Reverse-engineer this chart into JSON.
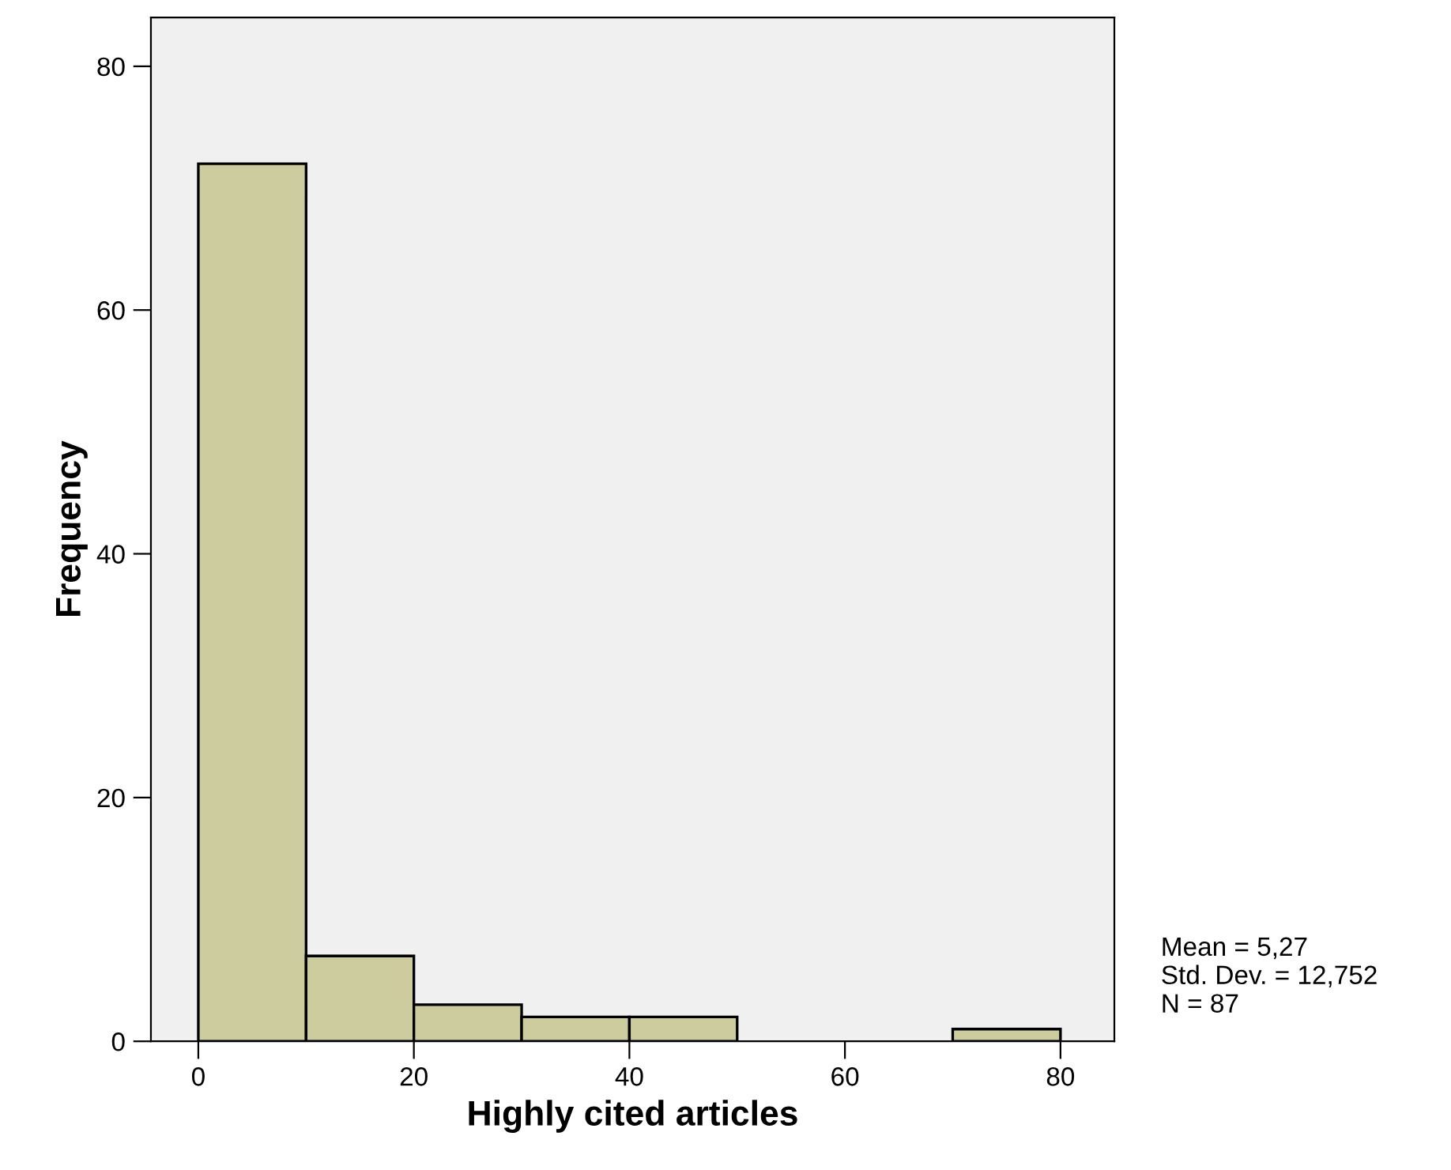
{
  "chart_data": {
    "type": "histogram",
    "xlabel": "Highly cited articles",
    "ylabel": "Frequency",
    "bins": [
      0,
      10,
      20,
      30,
      40,
      50,
      60,
      70,
      80
    ],
    "values": [
      72,
      7,
      3,
      2,
      2,
      0,
      0,
      1
    ],
    "color": "#cccc9e",
    "xlim": [
      -4.4,
      85
    ],
    "ylim": [
      0,
      84
    ],
    "xticks": [
      0,
      20,
      40,
      60,
      80
    ],
    "yticks": [
      0,
      20,
      40,
      60,
      80
    ],
    "grid": false,
    "legend": false,
    "annotations": [
      "Mean = 5,27\nStd. Dev. = 12,752\nN = 87"
    ]
  }
}
